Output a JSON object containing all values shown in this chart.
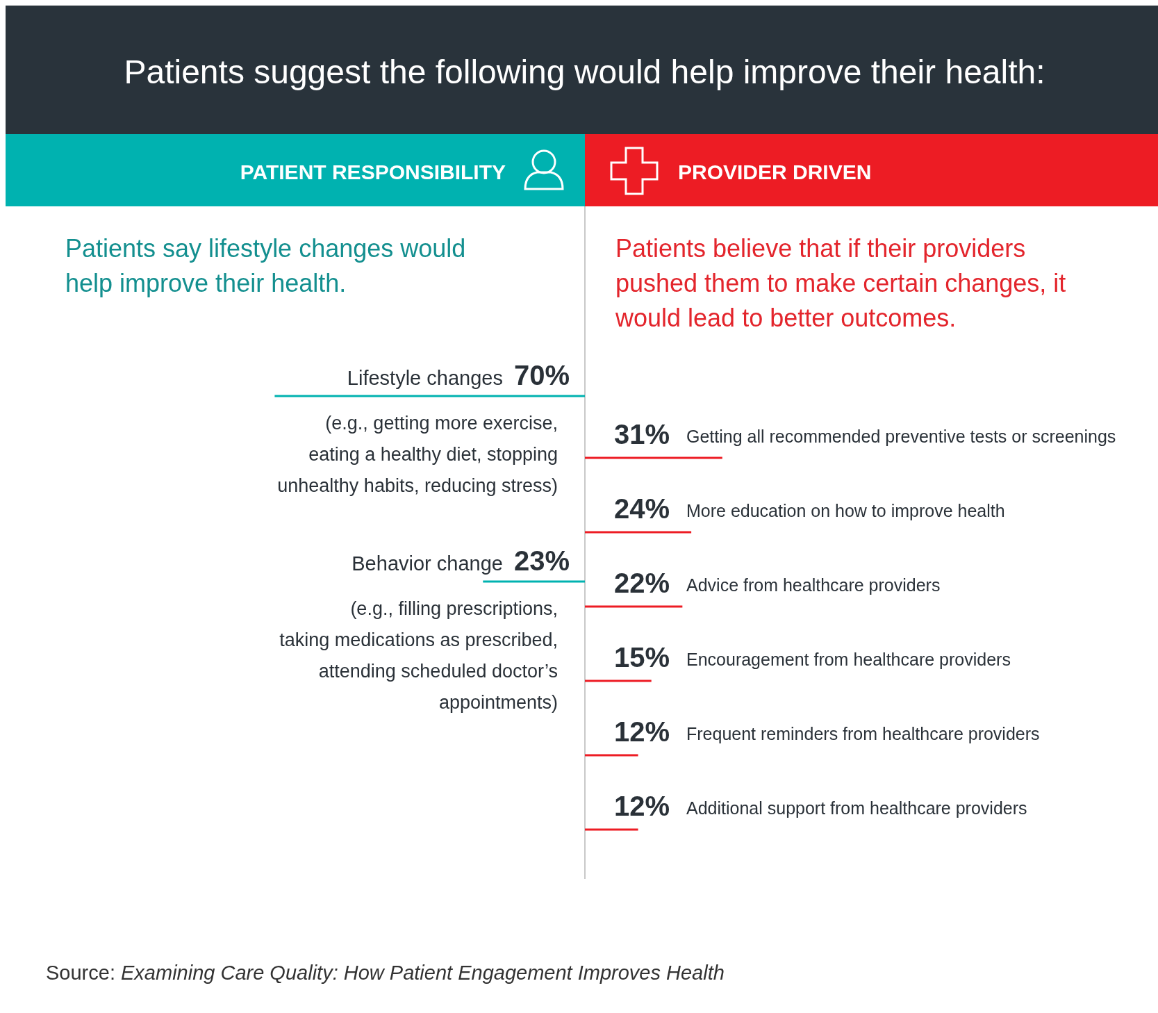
{
  "chart_data": [
    {
      "type": "other",
      "title": "Patients suggest the following would help improve their health:",
      "annotations": [
        "Source: Examining Care Quality: How Patient Engagement Improves Health"
      ]
    },
    {
      "type": "bar",
      "orientation": "horizontal",
      "title": "PATIENT RESPONSIBILITY",
      "subtitle": "Patients say lifestyle changes would help improve their health.",
      "categories": [
        "Lifestyle changes",
        "Behavior change"
      ],
      "series": [
        {
          "color": "#00b2b0",
          "values": [
            70,
            23
          ],
          "value_labels": [
            "70%",
            "23%"
          ]
        }
      ],
      "annotations": [
        "(e.g., getting more exercise, eating a healthy diet, stopping unhealthy habits, reducing stress)",
        "(e.g., filling prescriptions, taking medications as prescribed, attending scheduled doctor’s appointments)"
      ]
    },
    {
      "type": "bar",
      "orientation": "horizontal",
      "title": "PROVIDER DRIVEN",
      "subtitle": "Patients believe that if their providers pushed them to make certain changes, it would lead to better outcomes.",
      "categories": [
        "Getting all recommended preventive tests or screenings",
        "More education on how to improve health",
        "Advice from healthcare providers",
        "Encouragement from healthcare providers",
        "Frequent reminders from healthcare providers",
        "Additional support from healthcare providers"
      ],
      "series": [
        {
          "color": "#ed1c24",
          "values": [
            31,
            24,
            22,
            15,
            12,
            12
          ],
          "value_labels": [
            "31%",
            "24%",
            "22%",
            "15%",
            "12%",
            "12%"
          ]
        }
      ]
    }
  ]
}
